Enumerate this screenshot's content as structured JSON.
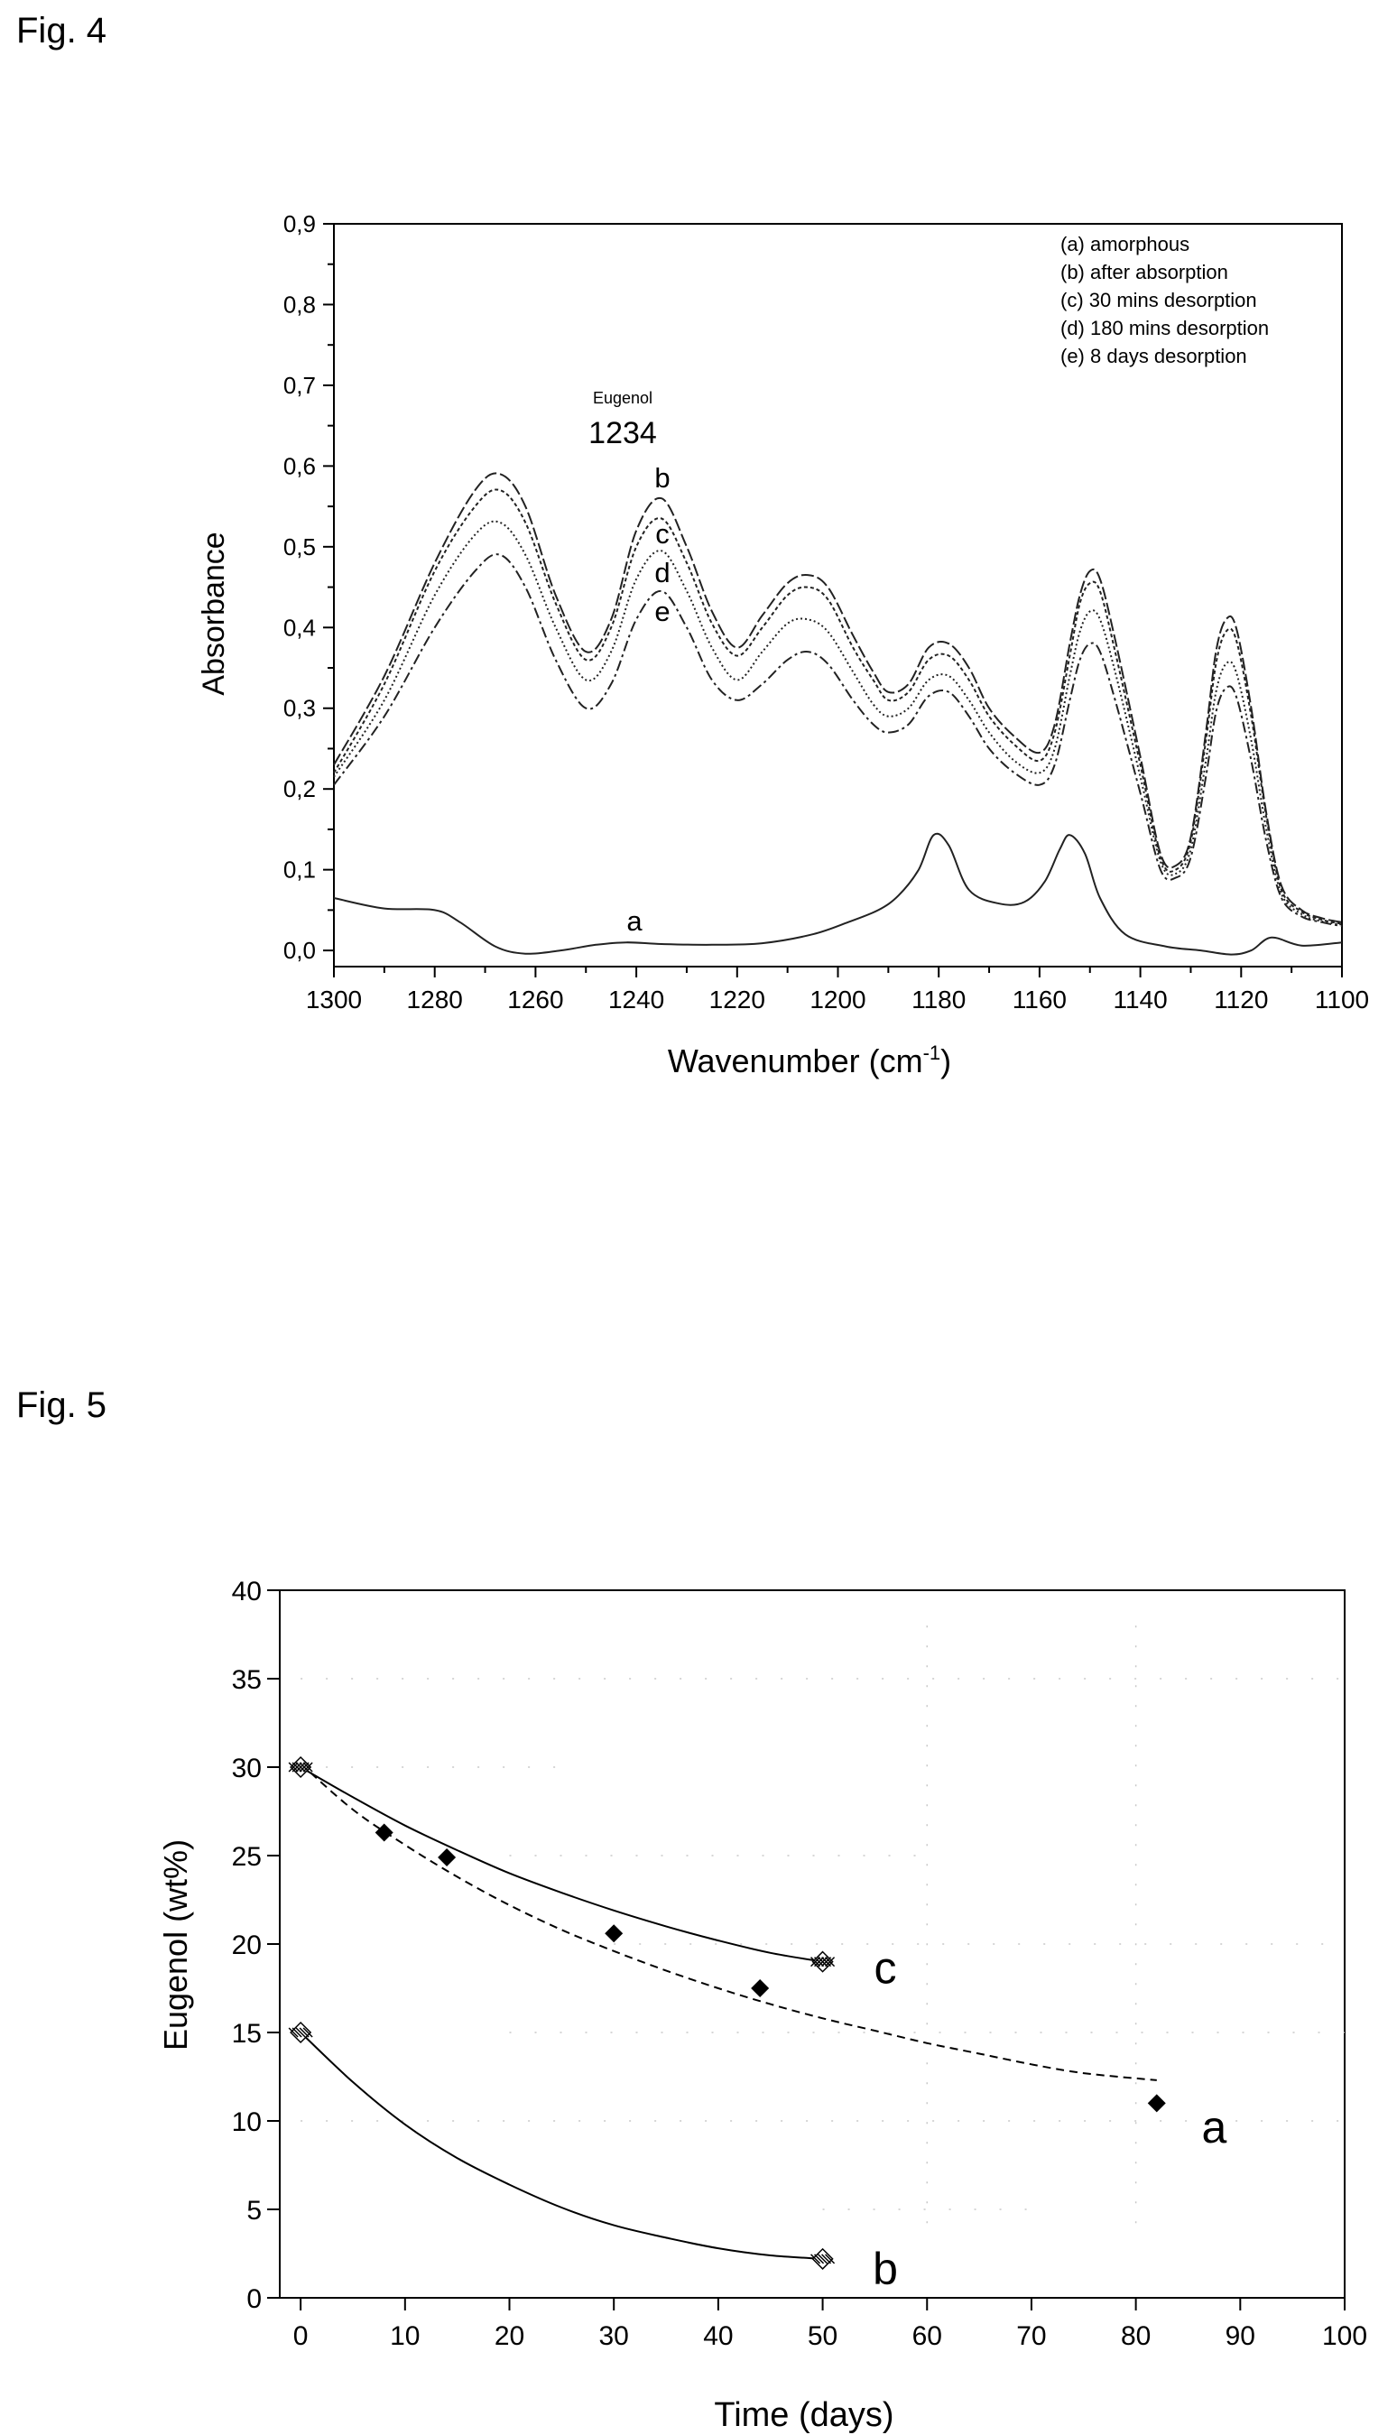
{
  "figures": {
    "fig4_label": "Fig. 4",
    "fig5_label": "Fig. 5"
  },
  "chart_data": [
    {
      "type": "line",
      "figure": "Fig. 4",
      "xlabel": "Wavenumber (cm",
      "xlabel_sup": "-1",
      "xlabel_close": ")",
      "ylabel": "Absorbance",
      "xlim": [
        1300,
        1100
      ],
      "ylim": [
        -0.02,
        0.9
      ],
      "x_reversed": true,
      "xticks": [
        1300,
        1280,
        1260,
        1240,
        1220,
        1200,
        1180,
        1160,
        1140,
        1120,
        1100
      ],
      "yticks": [
        0.0,
        0.1,
        0.2,
        0.3,
        0.4,
        0.5,
        0.6,
        0.7,
        0.8,
        0.9
      ],
      "yticklabels": [
        "0,0",
        "0,1",
        "0,2",
        "0,3",
        "0,4",
        "0,5",
        "0,6",
        "0,7",
        "0,8",
        "0,9"
      ],
      "legend_position": "top-right",
      "legend": [
        "(a)  amorphous",
        "(b)  after absorption",
        "(c)  30 mins desorption",
        "(d)  180 mins desorption",
        "(e)  8 days desorption"
      ],
      "annotations": {
        "peak_name": "Eugenol",
        "peak_value": "1234",
        "curve_labels": [
          "b",
          "c",
          "d",
          "e",
          "a"
        ]
      },
      "series": [
        {
          "label": "a",
          "x": [
            1300,
            1290,
            1280,
            1275,
            1268,
            1262,
            1255,
            1248,
            1242,
            1235,
            1225,
            1215,
            1205,
            1198,
            1192,
            1188,
            1184,
            1181,
            1178,
            1174,
            1168,
            1163,
            1159,
            1156,
            1154,
            1151,
            1148,
            1143,
            1135,
            1128,
            1122,
            1118,
            1114,
            1108,
            1100
          ],
          "y": [
            0.065,
            0.052,
            0.05,
            0.035,
            0.005,
            -0.004,
            0.0,
            0.007,
            0.01,
            0.008,
            0.007,
            0.009,
            0.02,
            0.035,
            0.05,
            0.068,
            0.1,
            0.143,
            0.13,
            0.075,
            0.058,
            0.06,
            0.085,
            0.125,
            0.143,
            0.12,
            0.065,
            0.02,
            0.005,
            0.0,
            -0.005,
            0.0,
            0.016,
            0.006,
            0.01
          ]
        },
        {
          "label": "b",
          "x": [
            1300,
            1290,
            1280,
            1272,
            1267,
            1262,
            1256,
            1250,
            1245,
            1240,
            1235,
            1230,
            1225,
            1220,
            1215,
            1210,
            1206,
            1202,
            1197,
            1193,
            1190,
            1186,
            1182,
            1178,
            1174,
            1170,
            1165,
            1160,
            1157,
            1154,
            1152,
            1150,
            1148,
            1145,
            1140,
            1136,
            1133,
            1130,
            1127,
            1125,
            1123,
            1121,
            1118,
            1115,
            1112,
            1108,
            1104,
            1100
          ],
          "y": [
            0.23,
            0.34,
            0.48,
            0.57,
            0.59,
            0.55,
            0.44,
            0.37,
            0.41,
            0.52,
            0.56,
            0.5,
            0.42,
            0.375,
            0.415,
            0.455,
            0.465,
            0.45,
            0.39,
            0.345,
            0.32,
            0.33,
            0.375,
            0.38,
            0.35,
            0.3,
            0.265,
            0.245,
            0.28,
            0.38,
            0.44,
            0.47,
            0.46,
            0.385,
            0.24,
            0.12,
            0.105,
            0.14,
            0.27,
            0.37,
            0.41,
            0.4,
            0.3,
            0.17,
            0.08,
            0.05,
            0.04,
            0.035
          ]
        },
        {
          "label": "c",
          "x": [
            1300,
            1290,
            1280,
            1272,
            1267,
            1262,
            1256,
            1250,
            1245,
            1240,
            1235,
            1230,
            1225,
            1220,
            1215,
            1210,
            1206,
            1202,
            1197,
            1193,
            1190,
            1186,
            1182,
            1178,
            1174,
            1170,
            1165,
            1160,
            1157,
            1154,
            1152,
            1150,
            1148,
            1145,
            1140,
            1136,
            1133,
            1130,
            1127,
            1125,
            1123,
            1121,
            1118,
            1115,
            1112,
            1108,
            1104,
            1100
          ],
          "y": [
            0.22,
            0.33,
            0.47,
            0.55,
            0.57,
            0.53,
            0.43,
            0.36,
            0.4,
            0.5,
            0.535,
            0.48,
            0.405,
            0.365,
            0.4,
            0.44,
            0.45,
            0.435,
            0.375,
            0.335,
            0.31,
            0.32,
            0.36,
            0.365,
            0.335,
            0.29,
            0.255,
            0.235,
            0.27,
            0.365,
            0.43,
            0.455,
            0.445,
            0.37,
            0.23,
            0.115,
            0.1,
            0.135,
            0.26,
            0.355,
            0.395,
            0.385,
            0.29,
            0.165,
            0.075,
            0.048,
            0.038,
            0.033
          ]
        },
        {
          "label": "d",
          "x": [
            1300,
            1290,
            1280,
            1272,
            1267,
            1262,
            1256,
            1250,
            1245,
            1240,
            1235,
            1230,
            1225,
            1220,
            1215,
            1210,
            1206,
            1202,
            1197,
            1193,
            1190,
            1186,
            1182,
            1178,
            1174,
            1170,
            1165,
            1160,
            1157,
            1154,
            1152,
            1150,
            1148,
            1145,
            1140,
            1136,
            1133,
            1130,
            1127,
            1125,
            1123,
            1121,
            1118,
            1115,
            1112,
            1108,
            1104,
            1100
          ],
          "y": [
            0.215,
            0.31,
            0.44,
            0.515,
            0.53,
            0.49,
            0.4,
            0.335,
            0.37,
            0.46,
            0.495,
            0.445,
            0.375,
            0.335,
            0.37,
            0.405,
            0.41,
            0.395,
            0.345,
            0.305,
            0.29,
            0.3,
            0.335,
            0.34,
            0.31,
            0.27,
            0.235,
            0.22,
            0.25,
            0.34,
            0.395,
            0.42,
            0.41,
            0.345,
            0.215,
            0.11,
            0.095,
            0.125,
            0.235,
            0.32,
            0.355,
            0.345,
            0.26,
            0.15,
            0.07,
            0.045,
            0.036,
            0.032
          ]
        },
        {
          "label": "e",
          "x": [
            1300,
            1290,
            1280,
            1272,
            1267,
            1262,
            1256,
            1250,
            1245,
            1240,
            1235,
            1230,
            1225,
            1220,
            1215,
            1210,
            1206,
            1202,
            1197,
            1193,
            1190,
            1186,
            1182,
            1178,
            1174,
            1170,
            1165,
            1160,
            1157,
            1154,
            1152,
            1150,
            1148,
            1145,
            1140,
            1136,
            1133,
            1130,
            1127,
            1125,
            1123,
            1121,
            1118,
            1115,
            1112,
            1108,
            1104,
            1100
          ],
          "y": [
            0.205,
            0.29,
            0.4,
            0.47,
            0.49,
            0.45,
            0.36,
            0.3,
            0.33,
            0.41,
            0.445,
            0.4,
            0.335,
            0.31,
            0.33,
            0.36,
            0.37,
            0.355,
            0.31,
            0.28,
            0.27,
            0.28,
            0.315,
            0.32,
            0.29,
            0.25,
            0.22,
            0.205,
            0.23,
            0.31,
            0.36,
            0.38,
            0.37,
            0.31,
            0.195,
            0.1,
            0.09,
            0.115,
            0.215,
            0.295,
            0.325,
            0.315,
            0.235,
            0.135,
            0.065,
            0.042,
            0.035,
            0.03
          ]
        }
      ]
    },
    {
      "type": "scatter",
      "figure": "Fig. 5",
      "xlabel": "Time (days)",
      "ylabel": "Eugenol (wt%)",
      "xlim": [
        -2,
        100
      ],
      "ylim": [
        0,
        40
      ],
      "xticks": [
        0,
        10,
        20,
        30,
        40,
        50,
        60,
        70,
        80,
        90,
        100
      ],
      "yticks": [
        0,
        5,
        10,
        15,
        20,
        25,
        30,
        35,
        40
      ],
      "series": [
        {
          "label": "a",
          "marker": "diamond",
          "x": [
            0,
            8,
            14,
            30,
            44,
            82
          ],
          "y": [
            30,
            26.3,
            24.9,
            20.6,
            17.5,
            11
          ],
          "fit_x": [
            0,
            5,
            10,
            15,
            20,
            25,
            30,
            35,
            40,
            45,
            50,
            55,
            60,
            65,
            70,
            75,
            82
          ],
          "fit_y": [
            30.2,
            27.6,
            25.6,
            23.8,
            22.2,
            20.8,
            19.6,
            18.5,
            17.5,
            16.6,
            15.8,
            15.1,
            14.4,
            13.8,
            13.2,
            12.7,
            12.3
          ],
          "fit_style": "dashed"
        },
        {
          "label": "b",
          "marker": "hatched",
          "x": [
            0,
            50
          ],
          "y": [
            15,
            2.2
          ],
          "fit_x": [
            0,
            5,
            10,
            15,
            20,
            25,
            30,
            35,
            40,
            45,
            50
          ],
          "fit_y": [
            15,
            12.2,
            9.8,
            7.9,
            6.4,
            5.1,
            4.1,
            3.4,
            2.8,
            2.4,
            2.2
          ],
          "fit_style": "solid"
        },
        {
          "label": "c",
          "marker": "crosshatched",
          "x": [
            0,
            50
          ],
          "y": [
            30,
            19
          ],
          "fit_x": [
            0,
            5,
            10,
            15,
            20,
            25,
            30,
            35,
            40,
            45,
            50
          ],
          "fit_y": [
            30,
            28.3,
            26.7,
            25.3,
            24.0,
            22.9,
            21.9,
            21.0,
            20.2,
            19.5,
            19.0
          ],
          "fit_style": "solid"
        }
      ]
    }
  ]
}
